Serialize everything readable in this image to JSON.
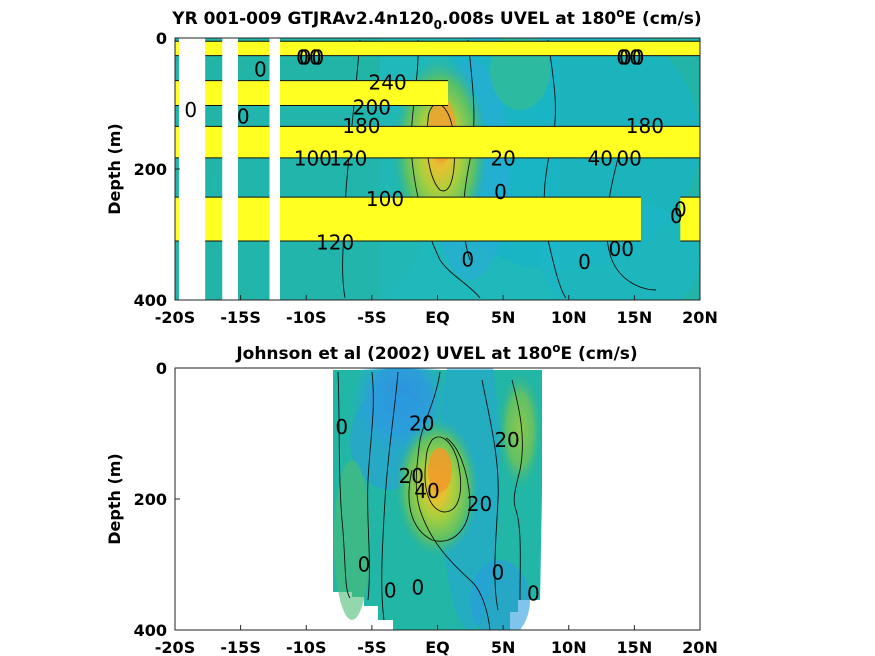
{
  "chart_data": [
    {
      "type": "heatmap",
      "title": "YR 001-009 GTJRAv2.4n120",
      "title_sub": "0",
      "title_rest": ".008s UVEL at 180",
      "title_sup": "o",
      "title_end": "E (cm/s)",
      "ylabel": "Depth (m)",
      "xlim": [
        -20,
        20
      ],
      "ylim": [
        400,
        0
      ],
      "x_ticks": [
        {
          "value": -20,
          "label": "-20S"
        },
        {
          "value": -15,
          "label": "-15S"
        },
        {
          "value": -10,
          "label": "-10S"
        },
        {
          "value": -5,
          "label": "-5S"
        },
        {
          "value": 0,
          "label": "EQ"
        },
        {
          "value": 5,
          "label": "5N"
        },
        {
          "value": 10,
          "label": "10N"
        },
        {
          "value": 15,
          "label": "15N"
        },
        {
          "value": 20,
          "label": "20N"
        }
      ],
      "y_ticks": [
        {
          "value": 0,
          "label": "0"
        },
        {
          "value": 200,
          "label": "200"
        },
        {
          "value": 400,
          "label": "400"
        }
      ],
      "bands": [
        {
          "x0": -20,
          "x1": 20,
          "d0": 5,
          "d1": 27
        },
        {
          "x0": -20,
          "x1": 0.8,
          "d0": 65,
          "d1": 103
        },
        {
          "x0": -20,
          "x1": 20,
          "d0": 135,
          "d1": 183
        },
        {
          "x0": -20,
          "x1": 15.5,
          "d0": 243,
          "d1": 310
        },
        {
          "x0": 18.5,
          "x1": 20,
          "d0": 243,
          "d1": 310
        }
      ],
      "gaps": [
        {
          "x0": -19.7,
          "x1": -17.7,
          "d0": 0,
          "d1": 400
        },
        {
          "x0": -16.4,
          "x1": -15.2,
          "d0": 0,
          "d1": 400
        },
        {
          "x0": -12.8,
          "x1": -12.0,
          "d0": 0,
          "d1": 400
        }
      ],
      "contour_labels": [
        {
          "text": "00",
          "x": -9.8,
          "d": 30
        },
        {
          "text": "00",
          "x": -9.6,
          "d": 30
        },
        {
          "text": "00",
          "x": 14.6,
          "d": 30
        },
        {
          "text": "00",
          "x": 14.8,
          "d": 30
        },
        {
          "text": "0",
          "x": -13.5,
          "d": 48
        },
        {
          "text": "240",
          "x": -3.8,
          "d": 68
        },
        {
          "text": "200",
          "x": -5.0,
          "d": 106
        },
        {
          "text": "0",
          "x": -18.8,
          "d": 110
        },
        {
          "text": "0",
          "x": -14.8,
          "d": 120
        },
        {
          "text": "180",
          "x": -5.8,
          "d": 134
        },
        {
          "text": "180",
          "x": 15.8,
          "d": 134
        },
        {
          "text": "100",
          "x": -9.5,
          "d": 184
        },
        {
          "text": "120",
          "x": -6.8,
          "d": 184
        },
        {
          "text": "20",
          "x": 5.0,
          "d": 184
        },
        {
          "text": "40",
          "x": 12.4,
          "d": 184
        },
        {
          "text": "00",
          "x": 14.6,
          "d": 184
        },
        {
          "text": "0",
          "x": 4.8,
          "d": 235
        },
        {
          "text": "100",
          "x": -4.0,
          "d": 246
        },
        {
          "text": "0",
          "x": 18.5,
          "d": 262
        },
        {
          "text": "0",
          "x": 18.2,
          "d": 272
        },
        {
          "text": "120",
          "x": -7.8,
          "d": 312
        },
        {
          "text": "00",
          "x": 14.0,
          "d": 322
        },
        {
          "text": "0",
          "x": 2.3,
          "d": 338
        },
        {
          "text": "0",
          "x": 11.2,
          "d": 342
        }
      ]
    },
    {
      "type": "heatmap",
      "title": "Johnson et al (2002) UVEL at 180",
      "title_sup": "o",
      "title_end": "E (cm/s)",
      "ylabel": "Depth (m)",
      "xlim": [
        -20,
        20
      ],
      "ylim": [
        400,
        0
      ],
      "data_xrange": [
        -8,
        8
      ],
      "x_ticks": [
        {
          "value": -20,
          "label": "-20S"
        },
        {
          "value": -15,
          "label": "-15S"
        },
        {
          "value": -10,
          "label": "-10S"
        },
        {
          "value": -5,
          "label": "-5S"
        },
        {
          "value": 0,
          "label": "EQ"
        },
        {
          "value": 5,
          "label": "5N"
        },
        {
          "value": 10,
          "label": "10N"
        },
        {
          "value": 15,
          "label": "15N"
        },
        {
          "value": 20,
          "label": "20N"
        }
      ],
      "y_ticks": [
        {
          "value": 0,
          "label": "0"
        },
        {
          "value": 200,
          "label": "200"
        },
        {
          "value": 400,
          "label": "400"
        }
      ],
      "contour_labels": [
        {
          "text": "0",
          "x": -7.3,
          "d": 90
        },
        {
          "text": "20",
          "x": -1.2,
          "d": 85
        },
        {
          "text": "20",
          "x": 5.3,
          "d": 110
        },
        {
          "text": "20",
          "x": -2.0,
          "d": 165
        },
        {
          "text": "40",
          "x": -0.8,
          "d": 188
        },
        {
          "text": "20",
          "x": 3.2,
          "d": 208
        },
        {
          "text": "0",
          "x": -5.6,
          "d": 300
        },
        {
          "text": "0",
          "x": 4.6,
          "d": 312
        },
        {
          "text": "0",
          "x": -1.5,
          "d": 335
        },
        {
          "text": "0",
          "x": -3.6,
          "d": 340
        },
        {
          "text": "0",
          "x": 7.3,
          "d": 344
        }
      ]
    }
  ]
}
